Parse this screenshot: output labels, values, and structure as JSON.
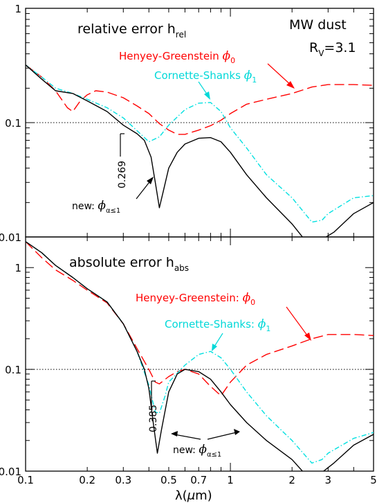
{
  "chart_data": [
    {
      "type": "line",
      "panel": "top",
      "title": "relative error h",
      "title_sub": "rel",
      "xscale": "log",
      "yscale": "log",
      "xlim": [
        0.1,
        5
      ],
      "ylim": [
        0.01,
        1
      ],
      "yticks": [
        {
          "value": 1,
          "label": "1"
        },
        {
          "value": 0.1,
          "label": "0.1"
        },
        {
          "value": 0.01,
          "label": "0.01"
        }
      ],
      "reference_line": 0.1,
      "corner_text": {
        "line1": "MW dust",
        "line2_main": "R",
        "line2_sub": "V",
        "line2_rest": "=3.1"
      },
      "series": [
        {
          "name": "Henyey-Greenstein",
          "phi_label": "ϕ",
          "phi_sub": "0",
          "color": "#ff0000",
          "dash": "long-dash",
          "points": [
            [
              0.1,
              0.32
            ],
            [
              0.12,
              0.25
            ],
            [
              0.14,
              0.19
            ],
            [
              0.16,
              0.135
            ],
            [
              0.17,
              0.125
            ],
            [
              0.185,
              0.155
            ],
            [
              0.2,
              0.175
            ],
            [
              0.22,
              0.19
            ],
            [
              0.25,
              0.185
            ],
            [
              0.3,
              0.165
            ],
            [
              0.35,
              0.14
            ],
            [
              0.4,
              0.12
            ],
            [
              0.45,
              0.098
            ],
            [
              0.5,
              0.086
            ],
            [
              0.55,
              0.079
            ],
            [
              0.6,
              0.079
            ],
            [
              0.7,
              0.086
            ],
            [
              0.8,
              0.094
            ],
            [
              0.9,
              0.105
            ],
            [
              1.0,
              0.12
            ],
            [
              1.2,
              0.145
            ],
            [
              1.5,
              0.16
            ],
            [
              2.0,
              0.18
            ],
            [
              2.5,
              0.205
            ],
            [
              3.0,
              0.215
            ],
            [
              4.0,
              0.215
            ],
            [
              5.0,
              0.212
            ]
          ]
        },
        {
          "name": "Cornette-Shanks",
          "phi_label": "ϕ",
          "phi_sub": "1",
          "color": "#00e0e0",
          "dash": "dash-dot",
          "points": [
            [
              0.1,
              0.32
            ],
            [
              0.12,
              0.25
            ],
            [
              0.14,
              0.2
            ],
            [
              0.17,
              0.18
            ],
            [
              0.2,
              0.16
            ],
            [
              0.25,
              0.135
            ],
            [
              0.3,
              0.11
            ],
            [
              0.35,
              0.085
            ],
            [
              0.4,
              0.068
            ],
            [
              0.45,
              0.075
            ],
            [
              0.5,
              0.095
            ],
            [
              0.6,
              0.13
            ],
            [
              0.7,
              0.148
            ],
            [
              0.8,
              0.15
            ],
            [
              0.9,
              0.125
            ],
            [
              1.0,
              0.09
            ],
            [
              1.2,
              0.06
            ],
            [
              1.5,
              0.035
            ],
            [
              2.0,
              0.022
            ],
            [
              2.5,
              0.0135
            ],
            [
              2.8,
              0.014
            ],
            [
              3.0,
              0.016
            ],
            [
              4.0,
              0.022
            ],
            [
              5.0,
              0.023
            ]
          ]
        },
        {
          "name": "new",
          "phi_label": "ϕ",
          "phi_sub": "α≤1",
          "color": "#000000",
          "dash": "solid",
          "points": [
            [
              0.1,
              0.32
            ],
            [
              0.12,
              0.24
            ],
            [
              0.14,
              0.19
            ],
            [
              0.17,
              0.18
            ],
            [
              0.2,
              0.155
            ],
            [
              0.25,
              0.125
            ],
            [
              0.3,
              0.095
            ],
            [
              0.35,
              0.08
            ],
            [
              0.38,
              0.07
            ],
            [
              0.41,
              0.05
            ],
            [
              0.43,
              0.03
            ],
            [
              0.45,
              0.018
            ],
            [
              0.47,
              0.025
            ],
            [
              0.5,
              0.04
            ],
            [
              0.55,
              0.055
            ],
            [
              0.6,
              0.065
            ],
            [
              0.7,
              0.073
            ],
            [
              0.8,
              0.074
            ],
            [
              0.9,
              0.068
            ],
            [
              1.0,
              0.055
            ],
            [
              1.2,
              0.035
            ],
            [
              1.5,
              0.022
            ],
            [
              2.0,
              0.013
            ],
            [
              2.3,
              0.0095
            ],
            [
              2.8,
              0.0095
            ],
            [
              3.2,
              0.011
            ],
            [
              4.0,
              0.016
            ],
            [
              5.0,
              0.02
            ]
          ]
        }
      ],
      "annotations": [
        {
          "text": "0.269",
          "rotated": true
        },
        {
          "text": "new: ",
          "phi_label": "ϕ",
          "phi_sub": "α≤1"
        }
      ]
    },
    {
      "type": "line",
      "panel": "bottom",
      "title": "absolute error h",
      "title_sub": "abs",
      "xscale": "log",
      "yscale": "log",
      "xlim": [
        0.1,
        5
      ],
      "ylim": [
        0.01,
        2
      ],
      "yticks": [
        {
          "value": 1,
          "label": "1"
        },
        {
          "value": 0.1,
          "label": "0.1"
        },
        {
          "value": 0.01,
          "label": "0.01"
        }
      ],
      "reference_line": 0.1,
      "series": [
        {
          "name": "Henyey-Greenstein",
          "phi_label": "ϕ",
          "phi_sub": "0",
          "color": "#ff0000",
          "dash": "long-dash",
          "points": [
            [
              0.1,
              1.8
            ],
            [
              0.12,
              1.25
            ],
            [
              0.14,
              0.95
            ],
            [
              0.17,
              0.75
            ],
            [
              0.2,
              0.6
            ],
            [
              0.25,
              0.45
            ],
            [
              0.3,
              0.28
            ],
            [
              0.35,
              0.16
            ],
            [
              0.4,
              0.1
            ],
            [
              0.43,
              0.075
            ],
            [
              0.45,
              0.072
            ],
            [
              0.5,
              0.085
            ],
            [
              0.55,
              0.095
            ],
            [
              0.6,
              0.1
            ],
            [
              0.7,
              0.09
            ],
            [
              0.8,
              0.068
            ],
            [
              0.9,
              0.055
            ],
            [
              1.0,
              0.075
            ],
            [
              1.2,
              0.11
            ],
            [
              1.5,
              0.14
            ],
            [
              2.0,
              0.17
            ],
            [
              2.5,
              0.2
            ],
            [
              3.0,
              0.22
            ],
            [
              4.0,
              0.22
            ],
            [
              5.0,
              0.215
            ]
          ]
        },
        {
          "name": "Cornette-Shanks",
          "phi_label": "ϕ",
          "phi_sub": "1",
          "color": "#00e0e0",
          "dash": "dash-dot",
          "points": [
            [
              0.1,
              1.8
            ],
            [
              0.12,
              1.4
            ],
            [
              0.14,
              1.05
            ],
            [
              0.17,
              0.8
            ],
            [
              0.2,
              0.62
            ],
            [
              0.25,
              0.46
            ],
            [
              0.3,
              0.28
            ],
            [
              0.35,
              0.15
            ],
            [
              0.4,
              0.07
            ],
            [
              0.43,
              0.038
            ],
            [
              0.45,
              0.037
            ],
            [
              0.48,
              0.055
            ],
            [
              0.5,
              0.075
            ],
            [
              0.6,
              0.11
            ],
            [
              0.7,
              0.14
            ],
            [
              0.8,
              0.15
            ],
            [
              0.9,
              0.13
            ],
            [
              1.0,
              0.1
            ],
            [
              1.2,
              0.06
            ],
            [
              1.5,
              0.035
            ],
            [
              2.0,
              0.02
            ],
            [
              2.5,
              0.012
            ],
            [
              2.8,
              0.013
            ],
            [
              3.0,
              0.015
            ],
            [
              4.0,
              0.021
            ],
            [
              5.0,
              0.024
            ]
          ]
        },
        {
          "name": "new",
          "phi_label": "ϕ",
          "phi_sub": "α≤1",
          "color": "#000000",
          "dash": "solid",
          "points": [
            [
              0.1,
              1.8
            ],
            [
              0.12,
              1.4
            ],
            [
              0.14,
              1.05
            ],
            [
              0.17,
              0.8
            ],
            [
              0.2,
              0.62
            ],
            [
              0.25,
              0.46
            ],
            [
              0.3,
              0.28
            ],
            [
              0.35,
              0.15
            ],
            [
              0.38,
              0.1
            ],
            [
              0.4,
              0.065
            ],
            [
              0.42,
              0.03
            ],
            [
              0.44,
              0.015
            ],
            [
              0.46,
              0.025
            ],
            [
              0.5,
              0.06
            ],
            [
              0.55,
              0.09
            ],
            [
              0.6,
              0.1
            ],
            [
              0.7,
              0.095
            ],
            [
              0.8,
              0.08
            ],
            [
              0.9,
              0.06
            ],
            [
              1.0,
              0.045
            ],
            [
              1.2,
              0.03
            ],
            [
              1.5,
              0.02
            ],
            [
              2.0,
              0.013
            ],
            [
              2.3,
              0.0095
            ],
            [
              2.8,
              0.0097
            ],
            [
              3.2,
              0.012
            ],
            [
              4.0,
              0.018
            ],
            [
              5.0,
              0.023
            ]
          ]
        }
      ],
      "annotations": [
        {
          "text": "0.385",
          "rotated": true
        },
        {
          "text": "new: ",
          "phi_label": "ϕ",
          "phi_sub": "α≤1"
        }
      ]
    }
  ],
  "xticks": [
    {
      "value": 0.1,
      "label": "0.1"
    },
    {
      "value": 0.2,
      "label": "0.2"
    },
    {
      "value": 0.3,
      "label": "0.3"
    },
    {
      "value": 0.5,
      "label": "0.5"
    },
    {
      "value": 0.7,
      "label": "0.7"
    },
    {
      "value": 1,
      "label": "1"
    },
    {
      "value": 2,
      "label": "2"
    },
    {
      "value": 3,
      "label": "3"
    },
    {
      "value": 5,
      "label": "5"
    }
  ],
  "xlabel_main": "λ(",
  "xlabel_mu": "μ",
  "xlabel_rest": "m)"
}
